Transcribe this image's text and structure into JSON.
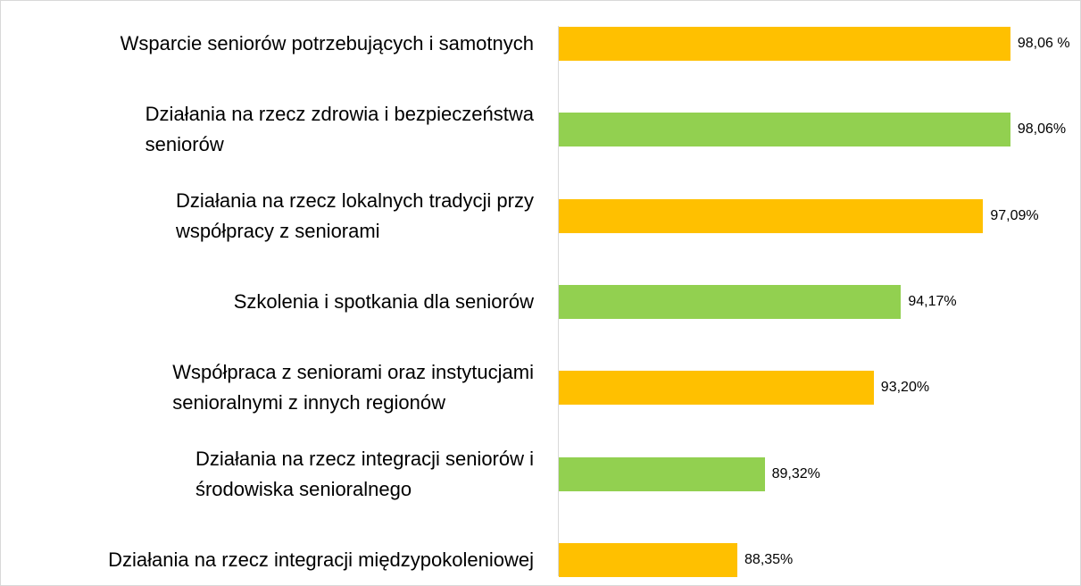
{
  "chart_data": {
    "type": "bar",
    "orientation": "horizontal",
    "categories": [
      "Wsparcie seniorów potrzebujących i samotnych",
      "Działania na rzecz zdrowia i bezpieczeństwa\nseniorów",
      "Działania na rzecz lokalnych tradycji  przy\nwspółpracy z seniorami",
      "Szkolenia i spotkania dla seniorów",
      "Współpraca z seniorami oraz instytucjami\nsenioralnymi z innych regionów",
      "Działania na rzecz integracji seniorów i\nśrodowiska senioralnego",
      "Działania na rzecz integracji międzypokoleniowej"
    ],
    "values": [
      98.06,
      98.06,
      97.09,
      94.17,
      93.2,
      89.32,
      88.35
    ],
    "value_labels": [
      "98,06 %",
      "98,06%",
      "97,09%",
      "94,17%",
      "93,20%",
      "89,32%",
      "88,35%"
    ],
    "colors": [
      "#ffc000",
      "#92d050",
      "#ffc000",
      "#92d050",
      "#ffc000",
      "#92d050",
      "#ffc000"
    ],
    "xlim": [
      82,
      100
    ]
  }
}
